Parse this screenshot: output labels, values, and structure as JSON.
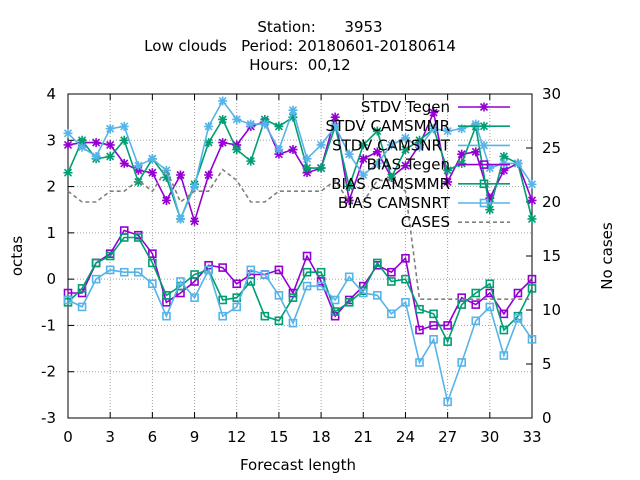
{
  "chart_data": {
    "type": "line",
    "title_lines": [
      "Station:      3953",
      "Low clouds   Period: 20180601-20180614",
      "Hours:  00,12"
    ],
    "xlabel": "Forecast length",
    "ylabel": "octas",
    "y2label": "No cases",
    "xlim": [
      0,
      33
    ],
    "ylim": [
      -3,
      4
    ],
    "y2lim": [
      0,
      30
    ],
    "xticks": [
      0,
      3,
      6,
      9,
      12,
      15,
      18,
      21,
      24,
      27,
      30,
      33
    ],
    "yticks": [
      -3,
      -2,
      -1,
      0,
      1,
      2,
      3,
      4
    ],
    "y2ticks": [
      0,
      5,
      10,
      15,
      20,
      25,
      30
    ],
    "grid": true,
    "legend_position": "top-right",
    "x": [
      0,
      1,
      2,
      3,
      4,
      5,
      6,
      7,
      8,
      9,
      10,
      11,
      12,
      13,
      14,
      15,
      16,
      17,
      18,
      19,
      20,
      21,
      22,
      23,
      24,
      25,
      26,
      27,
      28,
      29,
      30,
      31,
      32,
      33
    ],
    "series": [
      {
        "name": "STDV Tegen",
        "color": "#9400d3",
        "marker": "x",
        "axis": "y1",
        "values": [
          2.9,
          2.95,
          2.95,
          2.9,
          2.5,
          2.35,
          2.3,
          1.7,
          2.25,
          1.25,
          2.25,
          2.95,
          2.9,
          3.3,
          3.4,
          2.7,
          2.8,
          2.3,
          2.4,
          3.5,
          1.7,
          2.6,
          2.75,
          2.2,
          2.45,
          2.9,
          3.6,
          2.1,
          2.7,
          2.75,
          1.75,
          2.35,
          2.5,
          1.7
        ]
      },
      {
        "name": "STDV CAMSMMR",
        "color": "#009e73",
        "marker": "x",
        "axis": "y1",
        "values": [
          2.3,
          3.0,
          2.6,
          2.65,
          3.0,
          2.1,
          2.6,
          2.2,
          1.3,
          2.05,
          2.95,
          3.45,
          2.8,
          2.55,
          3.45,
          3.3,
          3.5,
          2.4,
          2.4,
          3.3,
          2.0,
          2.9,
          3.2,
          2.2,
          2.8,
          3.0,
          3.25,
          2.35,
          2.5,
          3.3,
          1.5,
          2.65,
          2.5,
          1.3
        ]
      },
      {
        "name": "STDV CAMSNRT",
        "color": "#56b4e9",
        "marker": "x",
        "axis": "y1",
        "values": [
          3.15,
          2.85,
          2.65,
          3.25,
          3.3,
          2.45,
          2.6,
          2.35,
          1.3,
          2.0,
          3.3,
          3.85,
          3.45,
          3.35,
          3.35,
          2.8,
          3.65,
          2.6,
          2.9,
          3.3,
          2.7,
          2.25,
          2.5,
          2.9,
          3.05,
          2.85,
          3.25,
          3.2,
          3.25,
          3.35,
          2.4,
          2.5,
          2.5,
          2.05
        ]
      },
      {
        "name": "BIAS Tegen",
        "color": "#9400d3",
        "marker": "square",
        "axis": "y1",
        "values": [
          -0.3,
          -0.3,
          0.35,
          0.55,
          1.05,
          0.95,
          0.55,
          -0.5,
          -0.3,
          -0.05,
          0.3,
          0.25,
          -0.1,
          0.1,
          0.1,
          0.2,
          -0.3,
          0.5,
          -0.05,
          -0.8,
          -0.45,
          -0.15,
          0.3,
          0.15,
          0.45,
          -1.1,
          -1.0,
          -1.0,
          -0.4,
          -0.55,
          -0.3,
          -0.75,
          -0.3,
          0.0
        ]
      },
      {
        "name": "BIAS CAMSMMR",
        "color": "#009e73",
        "marker": "square",
        "axis": "y1",
        "values": [
          -0.5,
          -0.2,
          0.35,
          0.5,
          0.9,
          0.9,
          0.35,
          -0.35,
          -0.15,
          0.1,
          0.2,
          -0.45,
          -0.4,
          -0.05,
          -0.8,
          -0.9,
          -0.4,
          0.15,
          0.15,
          -0.7,
          -0.5,
          -0.25,
          0.35,
          -0.05,
          0.0,
          -0.65,
          -0.75,
          -1.35,
          -0.55,
          -0.3,
          -0.1,
          -1.1,
          -0.8,
          -0.2
        ]
      },
      {
        "name": "BIAS CAMSNRT",
        "color": "#56b4e9",
        "marker": "square",
        "axis": "y1",
        "values": [
          -0.45,
          -0.6,
          0.0,
          0.2,
          0.15,
          0.15,
          -0.1,
          -0.8,
          -0.05,
          -0.4,
          0.2,
          -0.8,
          -0.6,
          0.2,
          0.1,
          -0.35,
          -0.95,
          -0.15,
          -0.15,
          -0.45,
          0.05,
          -0.3,
          -0.35,
          -0.75,
          -0.5,
          -1.8,
          -1.3,
          -2.65,
          -1.8,
          -0.9,
          -0.6,
          -1.65,
          -0.85,
          -1.3
        ]
      },
      {
        "name": "CASES",
        "color": "#808080",
        "dash": "4,3",
        "axis": "y2",
        "values": [
          21,
          20,
          20,
          21,
          21,
          22,
          21,
          23,
          20,
          21,
          21,
          23,
          22,
          20,
          20,
          21,
          21,
          21,
          21,
          22,
          20,
          20,
          22,
          22,
          21,
          11,
          11,
          11,
          11,
          11,
          11,
          11,
          11,
          11
        ]
      }
    ]
  }
}
